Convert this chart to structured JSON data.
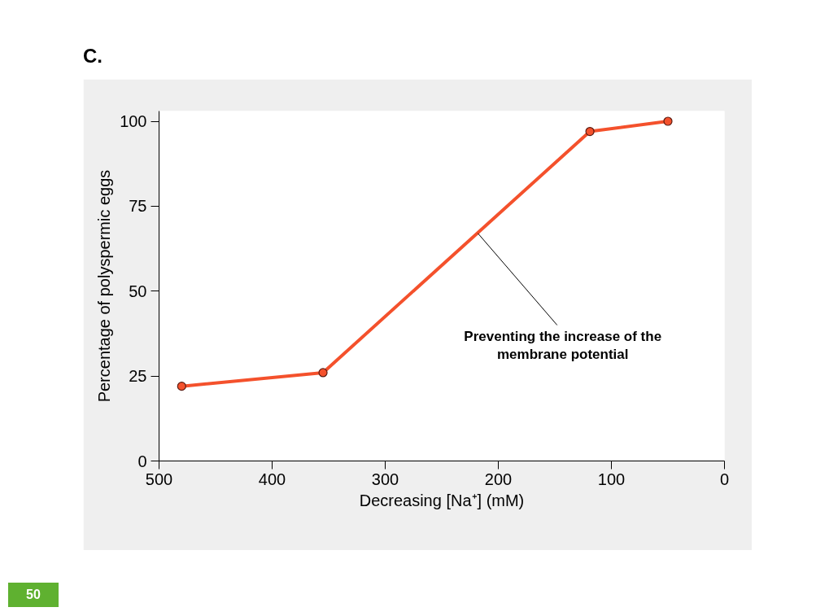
{
  "chart_data": {
    "type": "line",
    "title": "C.",
    "xlabel": "Decreasing [Na⁺] (mM)",
    "ylabel": "Percentage of polyspermic eggs",
    "x": [
      480,
      355,
      119,
      50
    ],
    "series": [
      {
        "color": "#f4512c",
        "values": [
          22,
          26,
          97,
          100
        ]
      }
    ],
    "xlim": [
      500,
      0
    ],
    "xticks": [
      500,
      400,
      300,
      200,
      100,
      0
    ],
    "ylim": [
      0,
      103
    ],
    "yticks": [
      0,
      25,
      50,
      75,
      100
    ],
    "marker": "circle",
    "line_style": "solid",
    "grid": false,
    "annotations": [
      {
        "text": "Preventing the increase of the\nmembrane potential",
        "x": 218,
        "y": 67
      },
      "50"
    ]
  }
}
